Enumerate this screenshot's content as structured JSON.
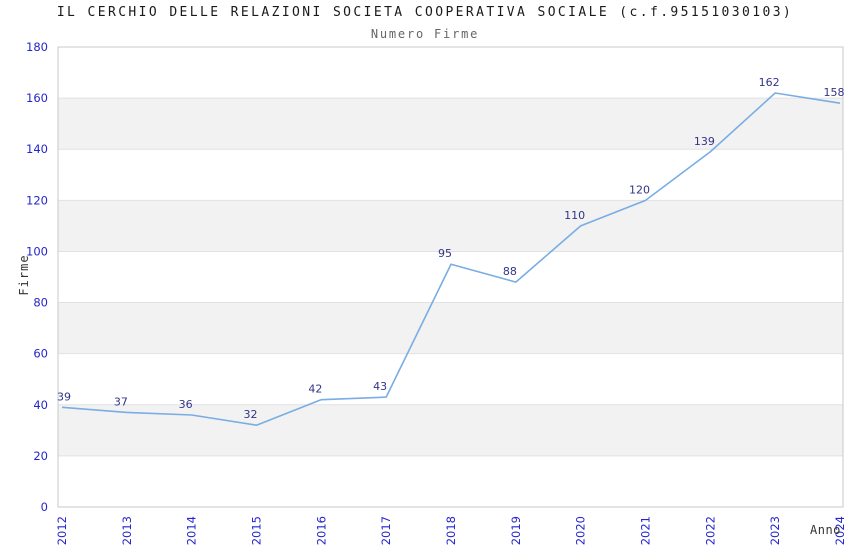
{
  "header": {
    "title": "IL CERCHIO DELLE RELAZIONI SOCIETA COOPERATIVA SOCIALE (c.f.95151030103)",
    "subtitle": "Numero Firme"
  },
  "colors": {
    "line": "#79ade4",
    "band": "#f2f2f2",
    "grid": "#e2e2e2",
    "border": "#c8c8c8",
    "tick_label": "#2525cc",
    "data_label": "#333388",
    "title": "#1a1a1a",
    "subtitle": "#666666",
    "axis_title": "#333333"
  },
  "chart_data": {
    "type": "line",
    "title": "IL CERCHIO DELLE RELAZIONI SOCIETA COOPERATIVA SOCIALE (c.f.95151030103)",
    "subtitle": "Numero Firme",
    "xlabel": "Anno",
    "ylabel": "Firme",
    "categories": [
      "2012",
      "2013",
      "2014",
      "2015",
      "2016",
      "2017",
      "2018",
      "2019",
      "2020",
      "2021",
      "2022",
      "2023",
      "2024"
    ],
    "series": [
      {
        "name": "Numero Firme",
        "values": [
          39,
          37,
          36,
          32,
          42,
          43,
          95,
          88,
          110,
          120,
          139,
          162,
          158
        ]
      }
    ],
    "ylim": [
      0,
      180
    ],
    "ytick_step": 20,
    "yticks": [
      0,
      20,
      40,
      60,
      80,
      100,
      120,
      140,
      160,
      180
    ],
    "grid": "horizontal gridlines with alternating shaded bands",
    "legend": "none",
    "point_labels_shown": true,
    "x_tick_rotation_deg": -90
  }
}
